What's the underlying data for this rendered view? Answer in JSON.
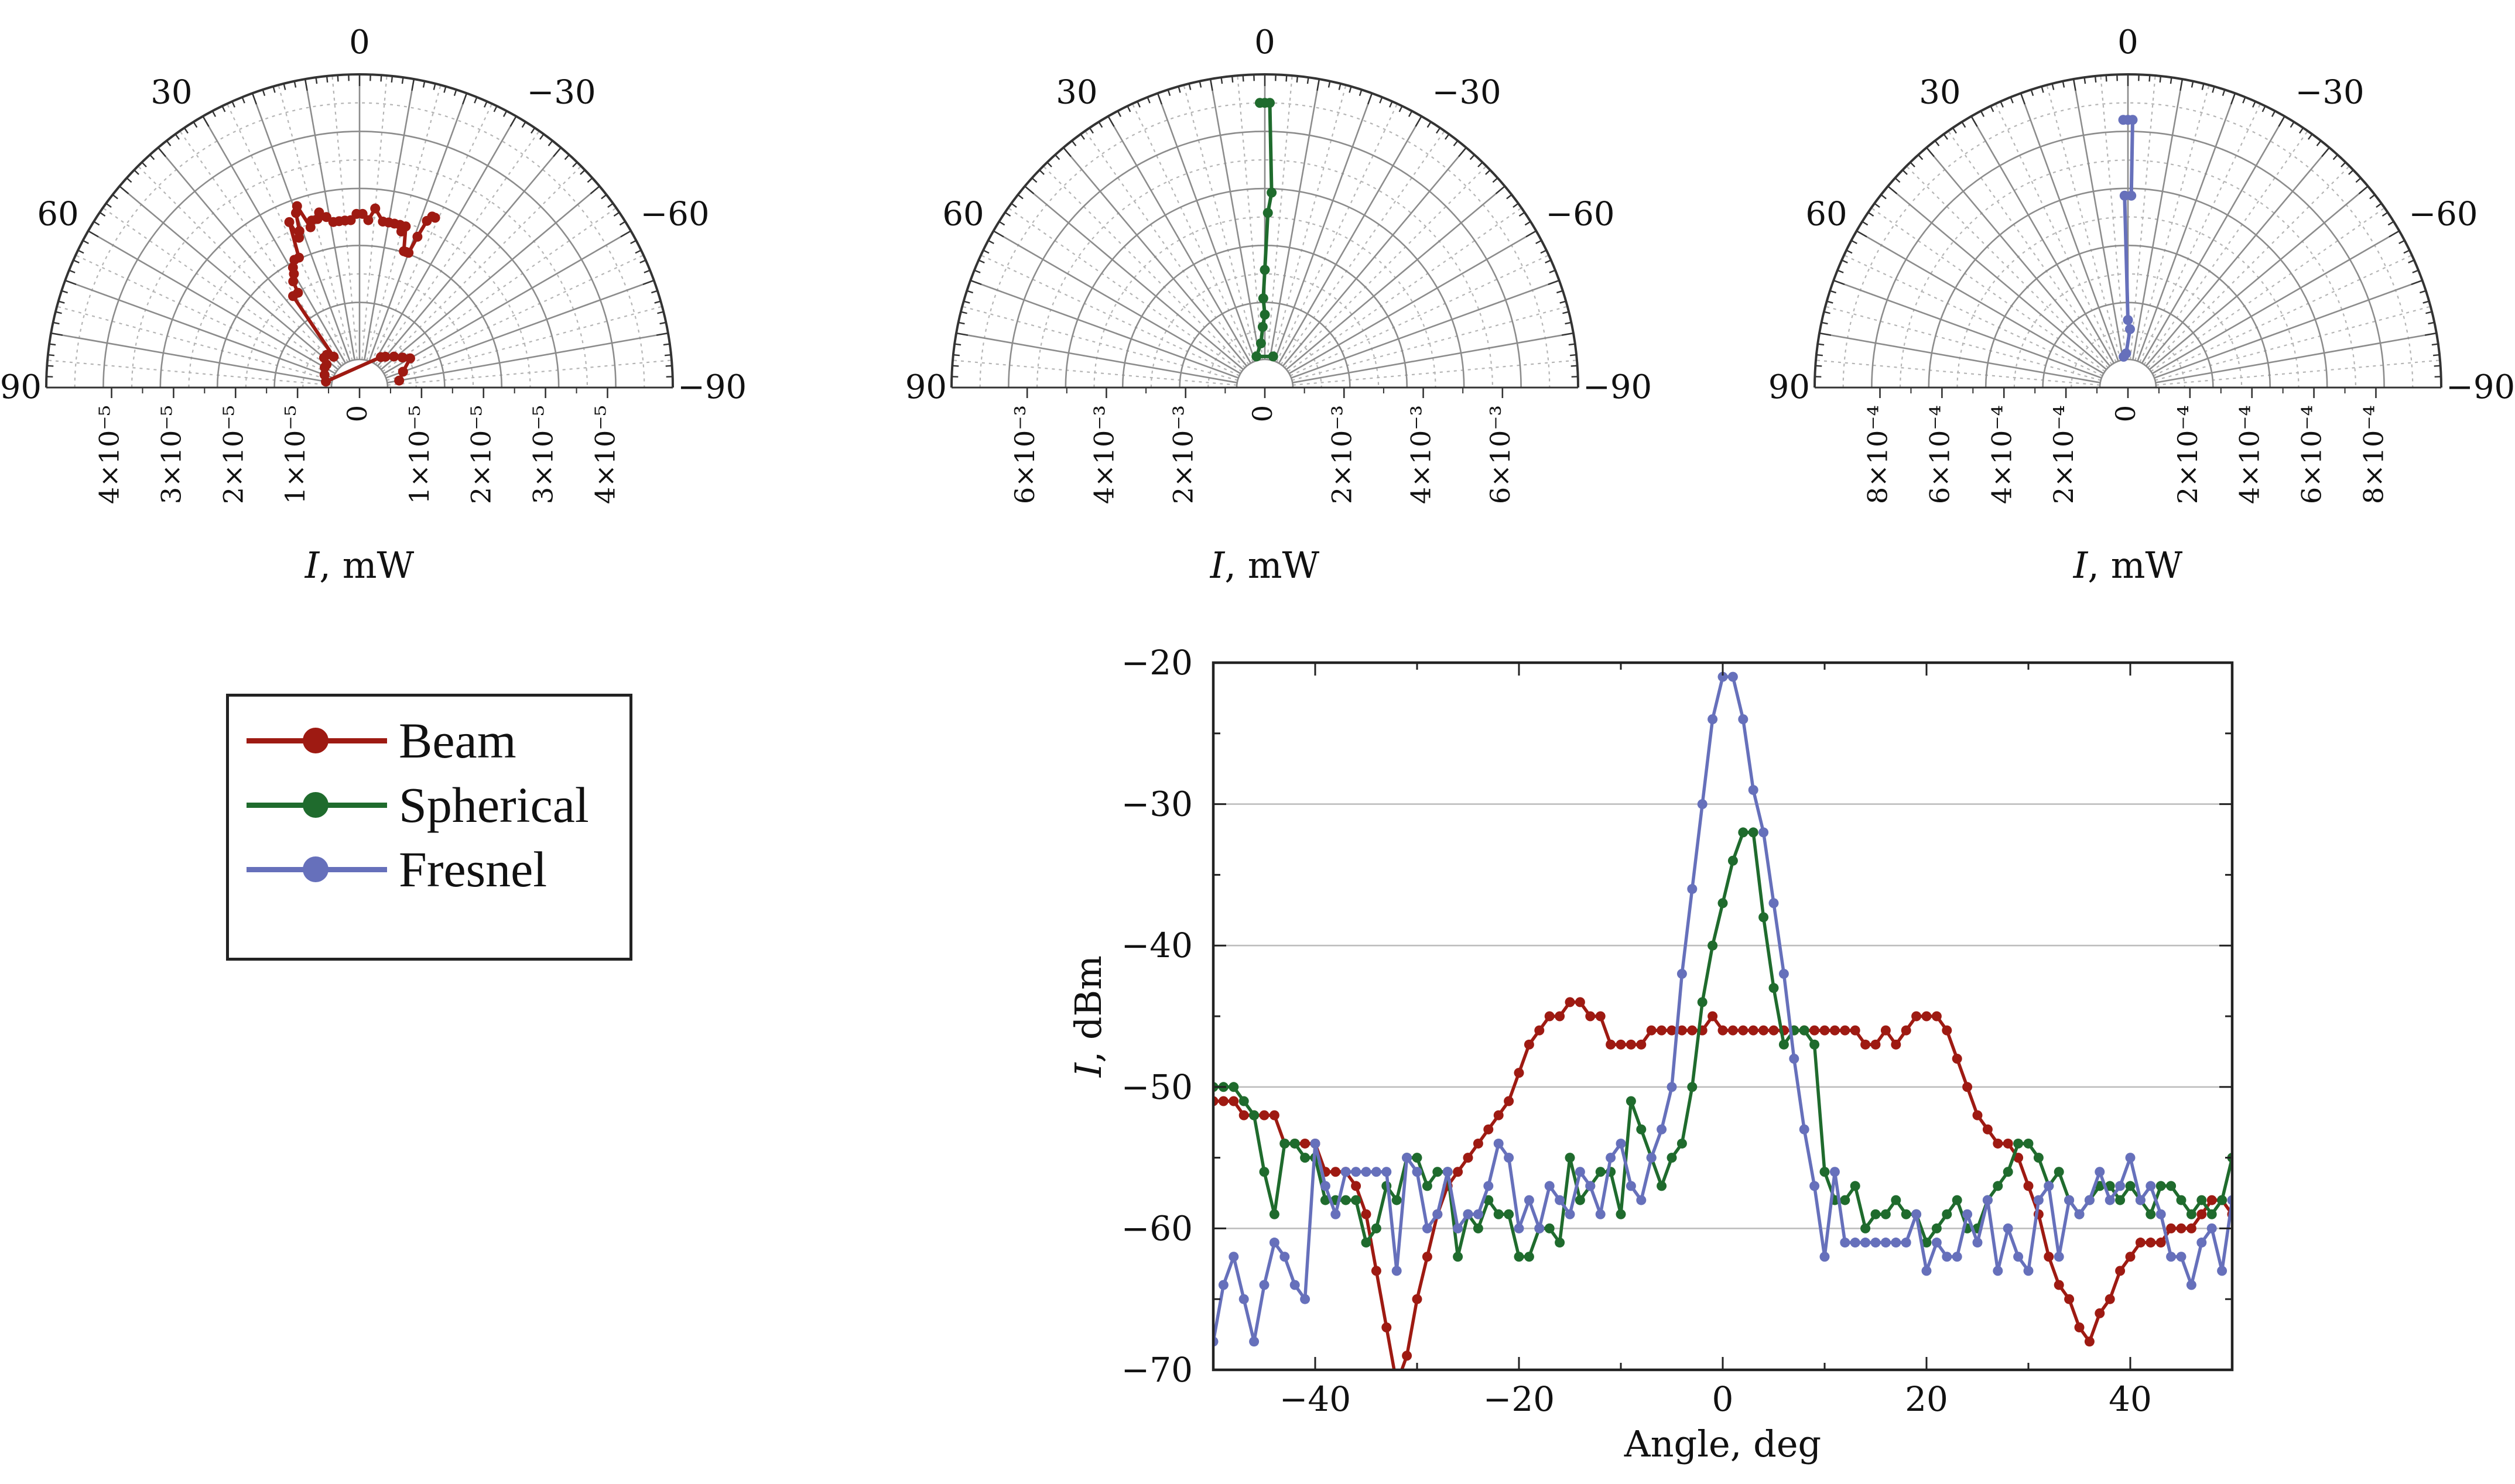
{
  "colors": {
    "beam": "#9e1a12",
    "spherical": "#1f6b2d",
    "fresnel": "#6670bb",
    "grid": "#9a9a9a",
    "axis": "#222222"
  },
  "legend": {
    "items": [
      {
        "label": "Beam",
        "color": "#9e1a12"
      },
      {
        "label": "Spherical",
        "color": "#1f6b2d"
      },
      {
        "label": "Fresnel",
        "color": "#6670bb"
      }
    ]
  },
  "chart_data": [
    {
      "type": "scatter",
      "kind": "polar-half",
      "angle_ticks": [
        "0",
        "30",
        "60",
        "90",
        "−30",
        "−60",
        "−90"
      ],
      "radial_ticks": [
        "4×10⁻⁵",
        "3×10⁻⁵",
        "2×10⁻⁵",
        "1×10⁻⁵",
        "0",
        "1×10⁻⁵",
        "2×10⁻⁵",
        "3×10⁻⁵",
        "4×10⁻⁵"
      ],
      "rmax": 4.7e-05,
      "xlabel": "I, mW",
      "series": [
        {
          "name": "Beam",
          "color": "#9e1a12",
          "points": [
            [
              -24,
              2.6e-05
            ],
            [
              -23,
              2.6e-05
            ],
            [
              -22,
              2.5e-05
            ],
            [
              -21,
              2.2e-05
            ],
            [
              -20,
              1.9e-05
            ],
            [
              -19,
              1.9e-05
            ],
            [
              -18,
              1.9e-05
            ],
            [
              -16,
              2.3e-05
            ],
            [
              -15,
              2.2e-05
            ],
            [
              -14,
              2.3e-05
            ],
            [
              -12,
              2.3e-05
            ],
            [
              -10,
              2.3e-05
            ],
            [
              -8,
              2.3e-05
            ],
            [
              -5,
              2.5e-05
            ],
            [
              -3,
              2.3e-05
            ],
            [
              -1,
              2.4e-05
            ],
            [
              1,
              2.4e-05
            ],
            [
              3,
              2.3e-05
            ],
            [
              5,
              2.3e-05
            ],
            [
              7,
              2.3e-05
            ],
            [
              9,
              2.3e-05
            ],
            [
              11,
              2.4e-05
            ],
            [
              13,
              2.5e-05
            ],
            [
              14,
              2.4e-05
            ],
            [
              16,
              2.4e-05
            ],
            [
              17,
              2.3e-05
            ],
            [
              19,
              2.7e-05
            ],
            [
              20,
              2.6e-05
            ],
            [
              21,
              2.3e-05
            ],
            [
              22,
              2.2e-05
            ],
            [
              23,
              2.5e-05
            ],
            [
              25,
              1.9e-05
            ],
            [
              27,
              1.9e-05
            ],
            [
              29,
              1.8e-05
            ],
            [
              30,
              1.7e-05
            ],
            [
              32,
              1.6e-05
            ],
            [
              33,
              1.4e-05
            ],
            [
              36,
              1.4e-05
            ],
            [
              40,
              2e-06
            ],
            [
              45,
              3e-06
            ],
            [
              50,
              3e-06
            ],
            [
              55,
              2e-06
            ],
            [
              60,
              2e-06
            ],
            [
              70,
              1.5e-06
            ],
            [
              80,
              1e-06
            ],
            [
              -35,
              1.5e-06
            ],
            [
              -40,
              2e-06
            ],
            [
              -48,
              3e-06
            ],
            [
              -55,
              4e-06
            ],
            [
              -60,
              5e-06
            ],
            [
              -70,
              3e-06
            ],
            [
              -80,
              2e-06
            ]
          ]
        }
      ]
    },
    {
      "type": "scatter",
      "kind": "polar-half",
      "angle_ticks": [
        "0",
        "30",
        "60",
        "90",
        "−30",
        "−60",
        "−90"
      ],
      "radial_ticks": [
        "6×10⁻³",
        "4×10⁻³",
        "2×10⁻³",
        "0",
        "2×10⁻³",
        "4×10⁻³",
        "6×10⁻³"
      ],
      "rmax": 0.007,
      "xlabel": "I, mW",
      "series": [
        {
          "name": "Spherical",
          "color": "#1f6b2d",
          "points": [
            [
              1,
              0.0063
            ],
            [
              0,
              0.0063
            ],
            [
              -1,
              0.0063
            ],
            [
              -2,
              0.0041
            ],
            [
              -1,
              0.0036
            ],
            [
              0,
              0.0022
            ],
            [
              1,
              0.0015
            ],
            [
              0,
              0.0011
            ],
            [
              2,
              0.0008
            ],
            [
              5,
              0.0004
            ],
            [
              15,
              0.0001
            ],
            [
              -15,
              0.0001
            ]
          ]
        }
      ]
    },
    {
      "type": "scatter",
      "kind": "polar-half",
      "angle_ticks": [
        "0",
        "30",
        "60",
        "90",
        "−30",
        "−60",
        "−90"
      ],
      "radial_ticks": [
        "8×10⁻⁴",
        "6×10⁻⁴",
        "4×10⁻⁴",
        "2×10⁻⁴",
        "0",
        "2×10⁻⁴",
        "4×10⁻⁴",
        "6×10⁻⁴",
        "8×10⁻⁴"
      ],
      "rmax": 0.00094,
      "xlabel": "I, mW",
      "series": [
        {
          "name": "Fresnel",
          "color": "#6670bb",
          "points": [
            [
              1,
              0.00079
            ],
            [
              0,
              0.00079
            ],
            [
              -1,
              0.00079
            ],
            [
              -1,
              0.00054
            ],
            [
              1,
              0.00054
            ],
            [
              0,
              0.00013
            ],
            [
              -2,
              0.0001
            ],
            [
              3,
              2e-05
            ],
            [
              8,
              1e-05
            ]
          ]
        }
      ]
    },
    {
      "type": "line",
      "xlabel": "Angle, deg",
      "ylabel": "I, dBm",
      "xlim": [
        -50,
        50
      ],
      "ylim": [
        -70,
        -20
      ],
      "xticks": [
        -40,
        -20,
        0,
        20,
        40
      ],
      "yticks": [
        -70,
        -60,
        -50,
        -40,
        -30,
        -20
      ],
      "grid": "horizontal",
      "series": [
        {
          "name": "Beam",
          "color": "#9e1a12",
          "x": [
            -50,
            -49,
            -48,
            -47,
            -46,
            -45,
            -44,
            -43,
            -42,
            -41,
            -40,
            -39,
            -38,
            -37,
            -36,
            -35,
            -34,
            -33,
            -32,
            -31,
            -30,
            -29,
            -28,
            -27,
            -26,
            -25,
            -24,
            -23,
            -22,
            -21,
            -20,
            -19,
            -18,
            -17,
            -16,
            -15,
            -14,
            -13,
            -12,
            -11,
            -10,
            -9,
            -8,
            -7,
            -6,
            -5,
            -4,
            -3,
            -2,
            -1,
            0,
            1,
            2,
            3,
            4,
            5,
            6,
            7,
            8,
            9,
            10,
            11,
            12,
            13,
            14,
            15,
            16,
            17,
            18,
            19,
            20,
            21,
            22,
            23,
            24,
            25,
            26,
            27,
            28,
            29,
            30,
            31,
            32,
            33,
            34,
            35,
            36,
            37,
            38,
            39,
            40,
            41,
            42,
            43,
            44,
            45,
            46,
            47,
            48,
            49,
            50
          ],
          "y": [
            -51,
            -51,
            -51,
            -52,
            -52,
            -52,
            -52,
            -54,
            -54,
            -54,
            -54,
            -56,
            -56,
            -56,
            -57,
            -59,
            -63,
            -67,
            -71,
            -69,
            -65,
            -62,
            -59,
            -57,
            -56,
            -55,
            -54,
            -53,
            -52,
            -51,
            -49,
            -47,
            -46,
            -45,
            -45,
            -44,
            -44,
            -45,
            -45,
            -47,
            -47,
            -47,
            -47,
            -46,
            -46,
            -46,
            -46,
            -46,
            -46,
            -45,
            -46,
            -46,
            -46,
            -46,
            -46,
            -46,
            -46,
            -46,
            -46,
            -46,
            -46,
            -46,
            -46,
            -46,
            -47,
            -47,
            -46,
            -47,
            -46,
            -45,
            -45,
            -45,
            -46,
            -48,
            -50,
            -52,
            -53,
            -54,
            -54,
            -55,
            -57,
            -59,
            -62,
            -64,
            -65,
            -67,
            -68,
            -66,
            -65,
            -63,
            -62,
            -61,
            -61,
            -61,
            -60,
            -60,
            -60,
            -59,
            -58,
            -58,
            -59
          ]
        },
        {
          "name": "Spherical",
          "color": "#1f6b2d",
          "x": [
            -50,
            -49,
            -48,
            -47,
            -46,
            -45,
            -44,
            -43,
            -42,
            -41,
            -40,
            -39,
            -38,
            -37,
            -36,
            -35,
            -34,
            -33,
            -32,
            -31,
            -30,
            -29,
            -28,
            -27,
            -26,
            -25,
            -24,
            -23,
            -22,
            -21,
            -20,
            -19,
            -18,
            -17,
            -16,
            -15,
            -14,
            -13,
            -12,
            -11,
            -10,
            -9,
            -8,
            -7,
            -6,
            -5,
            -4,
            -3,
            -2,
            -1,
            0,
            1,
            2,
            3,
            4,
            5,
            6,
            7,
            8,
            9,
            10,
            11,
            12,
            13,
            14,
            15,
            16,
            17,
            18,
            19,
            20,
            21,
            22,
            23,
            24,
            25,
            26,
            27,
            28,
            29,
            30,
            31,
            32,
            33,
            34,
            35,
            36,
            37,
            38,
            39,
            40,
            41,
            42,
            43,
            44,
            45,
            46,
            47,
            48,
            49,
            50
          ],
          "y": [
            -50,
            -50,
            -50,
            -51,
            -52,
            -56,
            -59,
            -54,
            -54,
            -55,
            -55,
            -58,
            -58,
            -58,
            -58,
            -61,
            -60,
            -57,
            -58,
            -55,
            -55,
            -57,
            -56,
            -56,
            -62,
            -59,
            -60,
            -58,
            -59,
            -59,
            -62,
            -62,
            -60,
            -60,
            -61,
            -55,
            -58,
            -57,
            -56,
            -56,
            -59,
            -51,
            -53,
            -55,
            -57,
            -55,
            -54,
            -50,
            -44,
            -40,
            -37,
            -34,
            -32,
            -32,
            -38,
            -43,
            -47,
            -46,
            -46,
            -47,
            -56,
            -58,
            -58,
            -57,
            -60,
            -59,
            -59,
            -58,
            -59,
            -59,
            -61,
            -60,
            -59,
            -58,
            -60,
            -60,
            -58,
            -57,
            -56,
            -54,
            -54,
            -55,
            -57,
            -56,
            -58,
            -59,
            -58,
            -57,
            -57,
            -58,
            -57,
            -58,
            -59,
            -57,
            -57,
            -58,
            -59,
            -58,
            -59,
            -58,
            -55
          ]
        },
        {
          "name": "Fresnel",
          "color": "#6670bb",
          "x": [
            -50,
            -49,
            -48,
            -47,
            -46,
            -45,
            -44,
            -43,
            -42,
            -41,
            -40,
            -39,
            -38,
            -37,
            -36,
            -35,
            -34,
            -33,
            -32,
            -31,
            -30,
            -29,
            -28,
            -27,
            -26,
            -25,
            -24,
            -23,
            -22,
            -21,
            -20,
            -19,
            -18,
            -17,
            -16,
            -15,
            -14,
            -13,
            -12,
            -11,
            -10,
            -9,
            -8,
            -7,
            -6,
            -5,
            -4,
            -3,
            -2,
            -1,
            0,
            1,
            2,
            3,
            4,
            5,
            6,
            7,
            8,
            9,
            10,
            11,
            12,
            13,
            14,
            15,
            16,
            17,
            18,
            19,
            20,
            21,
            22,
            23,
            24,
            25,
            26,
            27,
            28,
            29,
            30,
            31,
            32,
            33,
            34,
            35,
            36,
            37,
            38,
            39,
            40,
            41,
            42,
            43,
            44,
            45,
            46,
            47,
            48,
            49,
            50
          ],
          "y": [
            -68,
            -64,
            -62,
            -65,
            -68,
            -64,
            -61,
            -62,
            -64,
            -65,
            -54,
            -57,
            -59,
            -56,
            -56,
            -56,
            -56,
            -56,
            -63,
            -55,
            -56,
            -60,
            -59,
            -56,
            -60,
            -59,
            -59,
            -57,
            -54,
            -55,
            -60,
            -58,
            -60,
            -57,
            -58,
            -59,
            -56,
            -57,
            -59,
            -55,
            -54,
            -57,
            -58,
            -55,
            -53,
            -50,
            -42,
            -36,
            -30,
            -24,
            -21,
            -21,
            -24,
            -29,
            -32,
            -37,
            -42,
            -48,
            -53,
            -57,
            -62,
            -56,
            -61,
            -61,
            -61,
            -61,
            -61,
            -61,
            -61,
            -59,
            -63,
            -61,
            -62,
            -62,
            -59,
            -61,
            -58,
            -63,
            -60,
            -62,
            -63,
            -58,
            -57,
            -62,
            -58,
            -59,
            -58,
            -56,
            -58,
            -57,
            -55,
            -58,
            -57,
            -59,
            -62,
            -62,
            -64,
            -61,
            -60,
            -63,
            -58
          ]
        }
      ]
    }
  ]
}
